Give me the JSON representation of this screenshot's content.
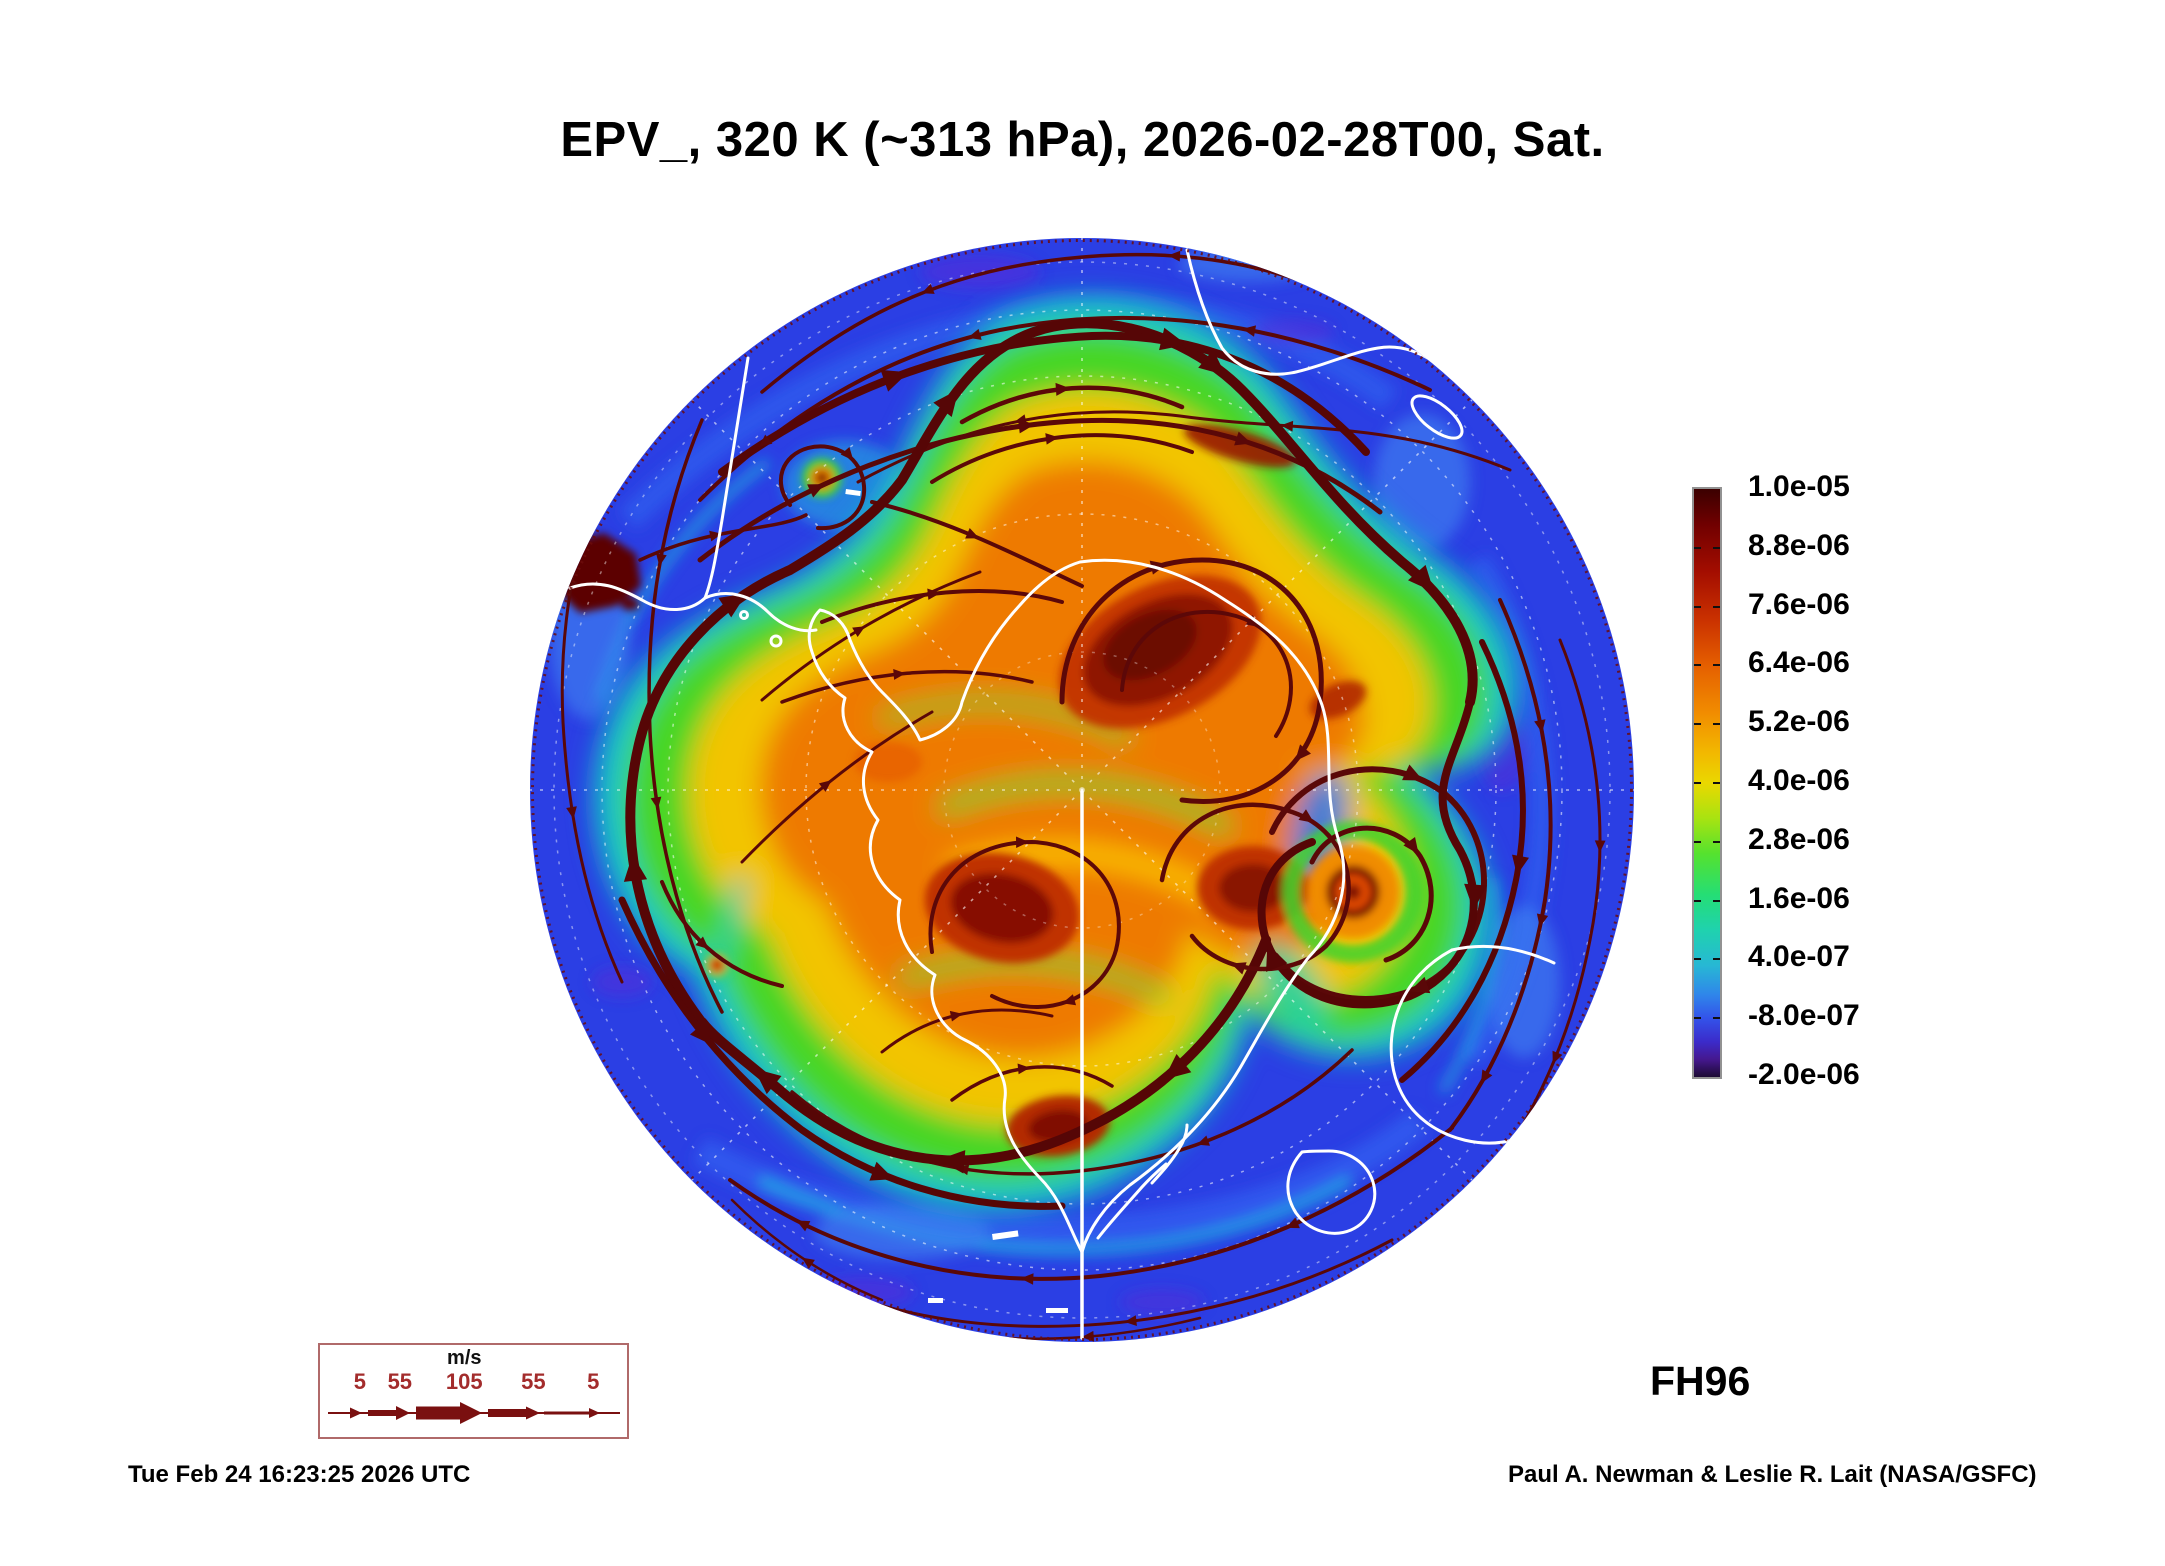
{
  "title": "EPV_, 320 K (~313 hPa), 2026-02-28T00, Sat.",
  "colorbar": {
    "tick_labels": [
      "1.0e-05",
      "8.8e-06",
      "7.6e-06",
      "6.4e-06",
      "5.2e-06",
      "4.0e-06",
      "2.8e-06",
      "1.6e-06",
      "4.0e-07",
      "-8.0e-07",
      "-2.0e-06"
    ]
  },
  "wind_legend": {
    "unit_label": "m/s",
    "speed_labels": [
      "5",
      "55",
      "105",
      "55",
      "5"
    ]
  },
  "footer": {
    "generated_timestamp": "Tue Feb 24 16:23:25 2026 UTC",
    "forecast_hour_label": "FH96",
    "credit": "Paul A. Newman & Leslie R. Lait (NASA/GSFC)"
  },
  "chart_data": {
    "type": "heatmap",
    "title": "EPV_, 320 K (~313 hPa), 2026-02-28T00, Sat.",
    "variable": "EPV (Ertel potential vorticity) with wind streamlines",
    "level": "320 K (~313 hPa)",
    "valid_time": "2026-02-28T00",
    "valid_day": "Sat.",
    "forecast_hour": "FH96",
    "projection": "south-polar-stereographic",
    "colorbar_orientation": "vertical-right",
    "colorbar_tick_values": [
      1e-05,
      8.8e-06,
      7.6e-06,
      6.4e-06,
      5.2e-06,
      4e-06,
      2.8e-06,
      1.6e-06,
      4e-07,
      -8e-07,
      -2e-06
    ],
    "colorbar_range": [
      -2e-06,
      1e-05
    ],
    "wind_speed_scale_ms": [
      5,
      55,
      105,
      55,
      5
    ],
    "legend_position": "bottom-left",
    "grid": "dashed graticule, meridians every 45 deg, solid 180E meridian"
  }
}
